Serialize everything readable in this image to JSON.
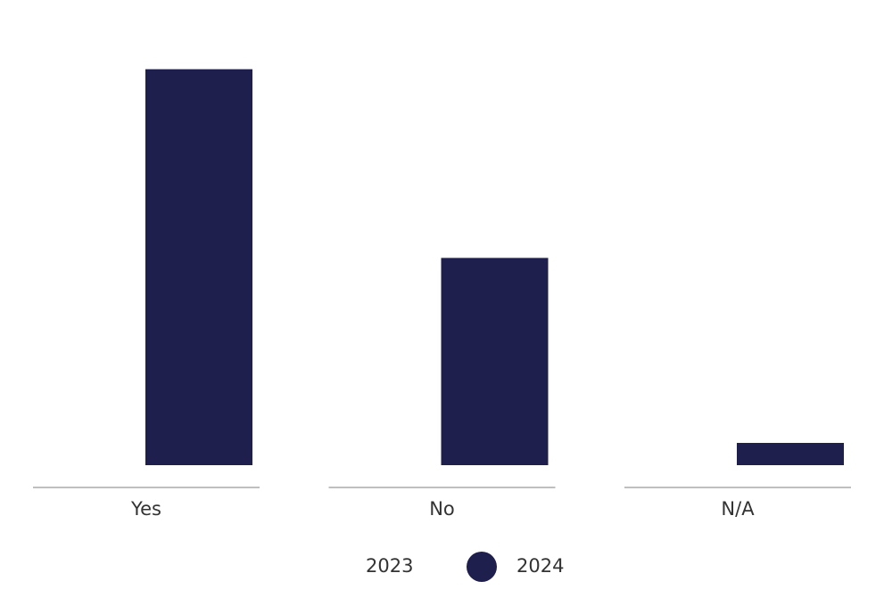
{
  "chart_data": {
    "type": "bar",
    "categories": [
      "Yes",
      "No",
      "N/A"
    ],
    "series": [
      {
        "name": "2023",
        "color": "#ffffff",
        "values": [
          null,
          null,
          null
        ]
      },
      {
        "name": "2024",
        "color": "#1f1f4d",
        "values": [
          64,
          33.5,
          3.6
        ]
      }
    ],
    "ylim": [
      0,
      70
    ]
  }
}
